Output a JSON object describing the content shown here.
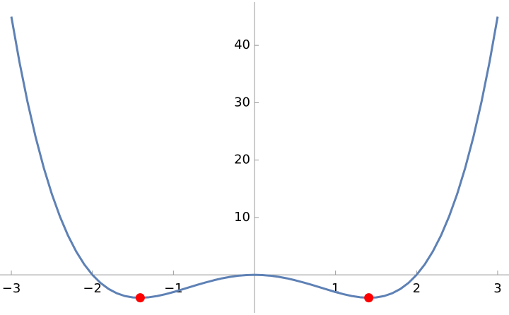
{
  "chart_data": {
    "type": "line",
    "x": [
      -3,
      -2.9,
      -2.8,
      -2.7,
      -2.6,
      -2.5,
      -2.4,
      -2.3,
      -2.2,
      -2.1,
      -2,
      -1.9,
      -1.8,
      -1.7,
      -1.6,
      -1.5,
      -1.4,
      -1.3,
      -1.2,
      -1.1,
      -1,
      -0.9,
      -0.8,
      -0.7,
      -0.6,
      -0.5,
      -0.4,
      -0.3,
      -0.2,
      -0.1,
      0,
      0.1,
      0.2,
      0.3,
      0.4,
      0.5,
      0.6,
      0.7,
      0.8,
      0.9,
      1,
      1.1,
      1.2,
      1.3,
      1.4,
      1.5,
      1.6,
      1.7,
      1.8,
      1.9,
      2,
      2.1,
      2.2,
      2.3,
      2.4,
      2.5,
      2.6,
      2.7,
      2.8,
      2.9,
      3
    ],
    "series": [
      {
        "color": "#5e81b5",
        "values": [
          45,
          37.09,
          30.11,
          23.98,
          18.66,
          14.06,
          10.14,
          6.82,
          4.07,
          1.81,
          0,
          -1.41,
          -2.46,
          -3.21,
          -3.69,
          -3.94,
          -4,
          -3.9,
          -3.69,
          -3.38,
          -3,
          -2.58,
          -2.15,
          -1.72,
          -1.31,
          -0.94,
          -0.61,
          -0.35,
          -0.16,
          -0.04,
          0,
          -0.04,
          -0.16,
          -0.35,
          -0.61,
          -0.94,
          -1.31,
          -1.72,
          -2.15,
          -2.58,
          -3,
          -3.38,
          -3.69,
          -3.9,
          -4,
          -3.94,
          -3.69,
          -3.21,
          -2.46,
          -1.41,
          0,
          1.81,
          4.07,
          6.82,
          10.14,
          14.06,
          18.66,
          23.98,
          30.11,
          37.09,
          45
        ]
      }
    ],
    "points": {
      "color": "#ff0000",
      "x": [
        -1.41,
        1.41
      ],
      "values": [
        -4,
        -4
      ]
    },
    "xlim": [
      -3.14,
      3.14
    ],
    "ylim": [
      -7,
      47.9
    ],
    "xticks": [
      {
        "value": -3,
        "label": "−3"
      },
      {
        "value": -2,
        "label": "−2"
      },
      {
        "value": -1,
        "label": "−1"
      },
      1,
      2,
      3
    ],
    "yticks": [
      10,
      20,
      30,
      40
    ]
  }
}
